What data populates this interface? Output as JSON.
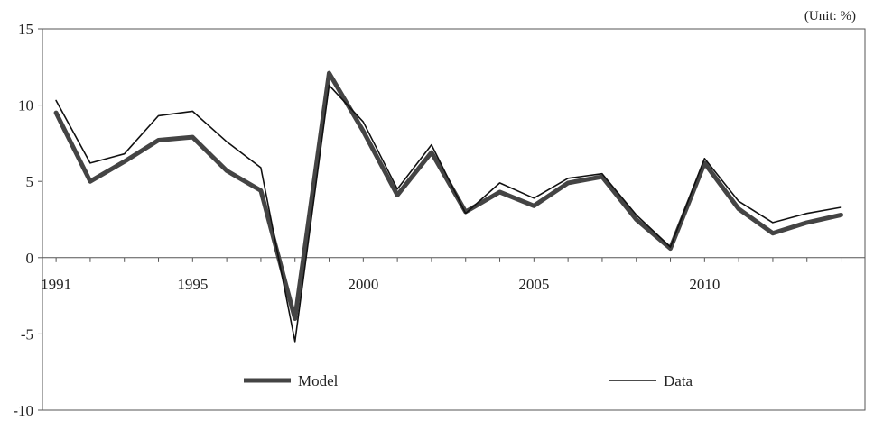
{
  "chart_data": {
    "type": "line",
    "unit_note": "(Unit: %)",
    "x": [
      1991,
      1992,
      1993,
      1994,
      1995,
      1996,
      1997,
      1998,
      1999,
      2000,
      2001,
      2002,
      2003,
      2004,
      2005,
      2006,
      2007,
      2008,
      2009,
      2010,
      2011,
      2012,
      2013,
      2014
    ],
    "x_tick_labels": [
      "1991",
      "1995",
      "2000",
      "2005",
      "2010"
    ],
    "x_tick_values": [
      1991,
      1995,
      2000,
      2005,
      2010
    ],
    "y_tick_labels": [
      "15",
      "10",
      "5",
      "0",
      "-5",
      "-10"
    ],
    "y_tick_values": [
      15,
      10,
      5,
      0,
      -5,
      -10
    ],
    "ylim": [
      -10,
      15
    ],
    "xlim": [
      1990.6,
      2014.7
    ],
    "grid": false,
    "legend_placement": "bottom",
    "series": [
      {
        "name": "Model",
        "style": "thick",
        "color": "#444444",
        "values": [
          9.5,
          5.0,
          6.3,
          7.7,
          7.9,
          5.7,
          4.4,
          -4.0,
          12.1,
          8.3,
          4.1,
          6.9,
          3.0,
          4.3,
          3.4,
          4.9,
          5.3,
          2.5,
          0.6,
          6.2,
          3.2,
          1.6,
          2.3,
          2.8
        ]
      },
      {
        "name": "Data",
        "style": "thin",
        "color": "#111111",
        "values": [
          10.3,
          6.2,
          6.8,
          9.3,
          9.6,
          7.6,
          5.9,
          -5.5,
          11.3,
          8.9,
          4.5,
          7.4,
          2.9,
          4.9,
          3.9,
          5.2,
          5.5,
          2.8,
          0.7,
          6.5,
          3.7,
          2.3,
          2.9,
          3.3
        ]
      }
    ]
  }
}
